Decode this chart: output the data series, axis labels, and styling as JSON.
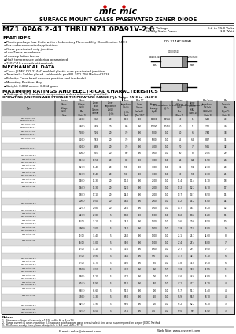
{
  "title_company": "SURFACE MOUNT GALSS PASSIVATED ZENER DIODE",
  "part_range": "MZ1.0PA6.2-41 THRU MZ1.0PA91V-2.0",
  "zener_voltage": "Zener Voltage",
  "zener_voltage_val": "6.2 to 91.0 Volts",
  "power_label": "Steady State Power",
  "power_val": "1.0 Watt",
  "features_title": "FEATURES",
  "features": [
    "Plastic package has Underwriters Laboratory Flammability Classification 94V-0",
    "For surface mounted applications",
    "Glass passivated chip junction",
    "Low Zener impedance",
    "Low regulation factor",
    "High temperature soldering guaranteed",
    "250°C/10 seconds at terminals"
  ],
  "mech_title": "MECHANICAL DATA",
  "mech": [
    "Case: JEDEC DO-214AC molded plastic over passivated junction",
    "Terminals: Solder plated, solderable per MIL-STD-750 Method 2026",
    "Polarity: Color band denotes positive end (cathode)",
    "Mounting Position: Any",
    "Weight: 0.002 ounce, 0.064 gram"
  ],
  "max_ratings_title": "MAXIMUM RATINGS AND ELECTRICAL CHARACTERISTICS",
  "ratings_note": "Ratings at 25°C ambient temperature unless otherwise specified.",
  "op_temp": "OPERATING JUNCTION AND STORAGE TEMPERATURE RANGE (Tj): Tstg=-55°C to +150°C",
  "table_data": [
    [
      "MZ1.0PA6.2-41",
      "MZ1.0PA6.2V-2.0",
      "6.2(B)",
      "5.92",
      "20",
      "10.0",
      "400",
      "10000",
      "115.4",
      "1.0",
      "1",
      "6.48",
      "40",
      "1000",
      "0.4"
    ],
    [
      "MZ1.0PA6.8-41",
      "MZ1.0PA6.8V-2.0",
      "6.8(B)",
      "6.49",
      "20",
      "8.0",
      "400",
      "10000",
      "104.4",
      "1.0",
      "1",
      "7.11",
      "40",
      "1000",
      "0.4"
    ],
    [
      "MZ1.0PA7.5-41",
      "MZ1.0PA7.5V-2.0",
      "7.5(B)",
      "7.16",
      "20",
      "7.0",
      "400",
      "5500",
      "1.0",
      "6.0",
      "6",
      "7.84",
      "38",
      "1000",
      "0.3"
    ],
    [
      "MZ1.0PA8.2-41",
      "MZ1.0PA8.2V-2.0",
      "8.2(B)",
      "7.83",
      "20",
      "7.0",
      "400",
      "5000",
      "1.0",
      "6.5",
      "6.5",
      "8.57",
      "35",
      "1000",
      "0.3"
    ],
    [
      "MZ1.0PA9.1-41",
      "MZ1.0PA9.1V-2.0",
      "9.1(B)",
      "8.69",
      "20",
      "7.0",
      "400",
      "4500",
      "1.0",
      "7.0",
      "7",
      "9.51",
      "32",
      "1000",
      "0.3"
    ],
    [
      "MZ1.0PA10-41",
      "MZ1.0PA10V-2.0",
      "10(B)",
      "9.55",
      "20",
      "8.0",
      "400",
      "4000",
      "1.0",
      "8.0",
      "8",
      "10.45",
      "29",
      "1000",
      "0.3"
    ],
    [
      "MZ1.0PA11-41",
      "MZ1.0PA11V-2.0",
      "11(B)",
      "10.50",
      "20",
      "8.0",
      "400",
      "3600",
      "1.0",
      "8.4",
      "8.4",
      "11.50",
      "26",
      "1000",
      "0.3"
    ],
    [
      "MZ1.0PA12-41",
      "MZ1.0PA12V-2.0",
      "12(C)",
      "11.40",
      "20",
      "9.0",
      "400",
      "3300",
      "1.0",
      "9.1",
      "9.1",
      "12.60",
      "23",
      "1000",
      "0.35"
    ],
    [
      "MZ1.0PA13-41",
      "MZ1.0PA13V-2.0",
      "13(C)",
      "12.40",
      "20",
      "9.5",
      "400",
      "3100",
      "1.0",
      "9.9",
      "9.9",
      "13.60",
      "21",
      "1000",
      "0.35"
    ],
    [
      "MZ1.0PA15-41",
      "MZ1.0PA15V-2.0",
      "15(C)",
      "14.30",
      "20",
      "11.0",
      "400",
      "2700",
      "1.0",
      "11.4",
      "11.4",
      "15.70",
      "18",
      "1000",
      "0.4"
    ],
    [
      "MZ1.0PA16-41",
      "MZ1.0PA16V-2.0",
      "16(C)",
      "15.30",
      "20",
      "12.0",
      "400",
      "2500",
      "1.0",
      "12.2",
      "12.2",
      "16.70",
      "17",
      "1000",
      "0.4"
    ],
    [
      "MZ1.0PA18-41",
      "MZ1.0PA18V-2.0",
      "18(C)",
      "17.10",
      "20",
      "14.0",
      "400",
      "2200",
      "1.0",
      "13.7",
      "13.7",
      "18.90",
      "15",
      "1000",
      "0.5"
    ],
    [
      "MZ1.0PA20-41",
      "MZ1.0PA20V-2.0",
      "20(C)",
      "19.00",
      "20",
      "16.0",
      "400",
      "2000",
      "1.0",
      "15.2",
      "15.2",
      "21.00",
      "14",
      "1000",
      "0.55"
    ],
    [
      "MZ1.0PA22-41",
      "MZ1.0PA22V-2.0",
      "22(C)",
      "20.80",
      "20",
      "23.0",
      "400",
      "1800",
      "1.0",
      "16.7",
      "16.7",
      "23.20",
      "12",
      "1000",
      "0.6"
    ],
    [
      "MZ1.0PA24-41",
      "MZ1.0PA24V-2.0",
      "24(C)",
      "22.80",
      "5",
      "18.0",
      "400",
      "1700",
      "1.0",
      "18.2",
      "18.2",
      "25.20",
      "11",
      "1000",
      "0.7"
    ],
    [
      "MZ1.0PA27-41",
      "MZ1.0PA27V-2.0",
      "27(D)",
      "25.10",
      "5",
      "21.0",
      "400",
      "1500",
      "1.0",
      "20.6",
      "20.6",
      "28.90",
      "10",
      "1500",
      "1.0"
    ],
    [
      "MZ1.0PA30-41",
      "MZ1.0PA30V-2.0",
      "30(D)",
      "28.00",
      "5",
      "24.0",
      "400",
      "1300",
      "1.0",
      "22.8",
      "22.8",
      "32.00",
      "9",
      "1500",
      "1.0"
    ],
    [
      "MZ1.0PA33-41",
      "MZ1.0PA33V-2.0",
      "33(D)",
      "31.40",
      "5",
      "26.0",
      "400",
      "1200",
      "1.0",
      "25.1",
      "25.1",
      "34.60",
      "8",
      "1500",
      "1.1"
    ],
    [
      "MZ1.0PA36-41",
      "MZ1.0PA36V-2.0",
      "36(D)",
      "34.00",
      "5",
      "30.0",
      "400",
      "1100",
      "1.0",
      "27.4",
      "27.4",
      "38.00",
      "7",
      "1500",
      "1.1"
    ],
    [
      "MZ1.0PA39-41",
      "MZ1.0PA39V-2.0",
      "39(D)",
      "37.10",
      "5",
      "33.0",
      "400",
      "1000",
      "1.0",
      "29.7",
      "29.7",
      "40.90",
      "7",
      "1500",
      "1.2"
    ],
    [
      "MZ1.0PA43-41",
      "MZ1.0PA43V-2.0",
      "43(D)",
      "40.90",
      "5",
      "36.0",
      "400",
      "900",
      "1.0",
      "32.7",
      "32.7",
      "45.10",
      "6",
      "1500",
      "1.3"
    ],
    [
      "MZ1.0PA47-41",
      "MZ1.0PA47V-2.0",
      "47(D)",
      "44.70",
      "5",
      "40.0",
      "400",
      "850",
      "1.0",
      "35.8",
      "35.8",
      "49.30",
      "6",
      "1500",
      "1.4"
    ],
    [
      "MZ1.0PA51-41",
      "MZ1.0PA51V-2.0",
      "51(D)",
      "48.50",
      "5",
      "43.0",
      "400",
      "800",
      "1.0",
      "38.8",
      "38.8",
      "53.50",
      "5",
      "1500",
      "1.5"
    ],
    [
      "MZ1.0PA56-41",
      "MZ1.0PA56V-2.0",
      "56(E)",
      "53.20",
      "5",
      "47.0",
      "400",
      "700",
      "1.0",
      "42.6",
      "42.6",
      "58.80",
      "5",
      "2000",
      "2.0"
    ],
    [
      "MZ1.0PA62-41",
      "MZ1.0PA62V-2.0",
      "62(E)",
      "58.90",
      "5",
      "52.0",
      "400",
      "650",
      "1.0",
      "47.1",
      "47.1",
      "65.10",
      "4",
      "2000",
      "2.0"
    ],
    [
      "MZ1.0PA68-41",
      "MZ1.0PA68V-2.0",
      "68(E)",
      "64.60",
      "5",
      "57.0",
      "400",
      "600",
      "1.0",
      "51.7",
      "51.7",
      "71.40",
      "4",
      "2000",
      "2.0"
    ],
    [
      "MZ1.0PA75-41",
      "MZ1.0PA75V-2.0",
      "75(E)",
      "71.30",
      "5",
      "63.0",
      "400",
      "550",
      "1.0",
      "56.9",
      "56.9",
      "78.70",
      "4",
      "2000",
      "2.0"
    ],
    [
      "MZ1.0PA82-41",
      "MZ1.0PA82V-2.0",
      "82(E)",
      "77.90",
      "5",
      "69.0",
      "400",
      "500",
      "1.0",
      "62.2",
      "62.2",
      "86.10",
      "3",
      "2000",
      "2.0"
    ],
    [
      "MZ1.0PA91-41",
      "MZ1.0PA91V-2.0",
      "91(E)",
      "86.50",
      "5",
      "77.0",
      "400",
      "450",
      "1.0",
      "69.0",
      "69",
      "95.50",
      "3",
      "2000",
      "2.0"
    ]
  ],
  "notes": [
    "1.  Standard voltage tolerance is ±1.5%, suffix A; ± B=±2%",
    "2.  Surge current is a non-repetitive 8.3ms pulse width square wave or equivalent sine wave superimposed on Ize per JEDEC Method",
    "3.  Maximum steady state power dissipation is 1.0 watt at Tc=75°C"
  ],
  "footer_email": "E-mail: sales@cissemi.com",
  "footer_web": "Web Site: www.cissemi.com",
  "bg_color": "#ffffff",
  "header_bg": "#b0b0b0",
  "row_alt_color": "#dcdcdc",
  "red_color": "#cc0000"
}
